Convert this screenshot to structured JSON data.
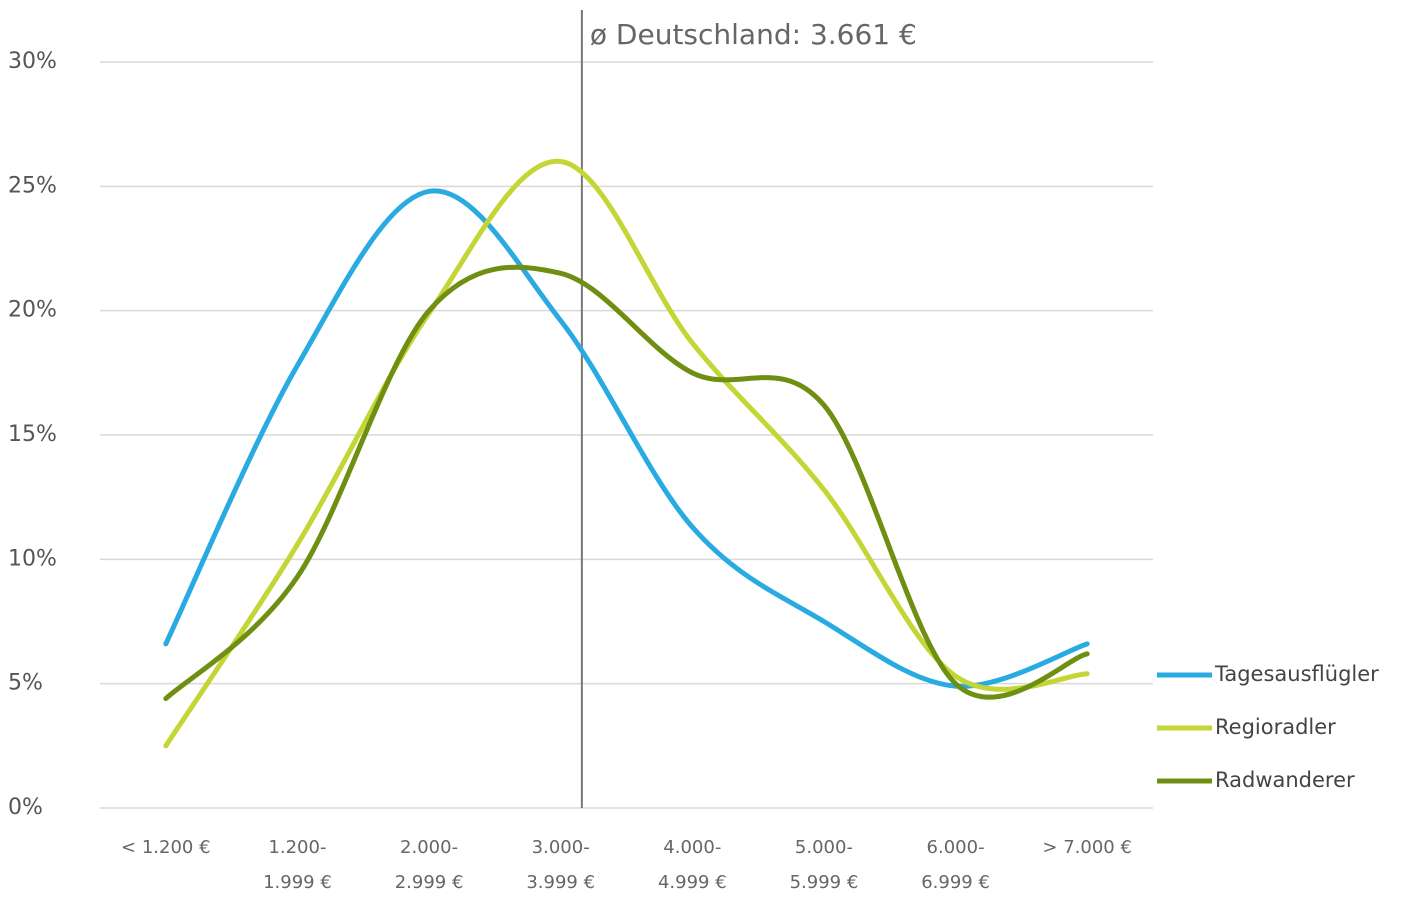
{
  "chart_data": {
    "type": "line",
    "categories": [
      "< 1.200 €",
      "1.200-\n1.999 €",
      "2.000-\n2.999 €",
      "3.000-\n3.999 €",
      "4.000-\n4.999 €",
      "5.000-\n5.999 €",
      "6.000-\n6.999 €",
      "> 7.000 €"
    ],
    "series": [
      {
        "name": "Tagesausflügler",
        "color": "#29abe2",
        "values": [
          6.6,
          17.8,
          24.8,
          19.6,
          11.3,
          7.5,
          4.9,
          6.6
        ]
      },
      {
        "name": "Regioradler",
        "color": "#c3d636",
        "values": [
          2.5,
          10.6,
          19.9,
          26.0,
          18.7,
          12.8,
          5.3,
          5.4
        ]
      },
      {
        "name": "Radwanderer",
        "color": "#6e8f12",
        "values": [
          4.4,
          9.3,
          20.0,
          21.5,
          17.5,
          16.2,
          5.0,
          6.2
        ]
      }
    ],
    "ylim": [
      0,
      30
    ],
    "yticks": [
      {
        "value": 0,
        "label": "0%"
      },
      {
        "value": 5,
        "label": "5%"
      },
      {
        "value": 10,
        "label": "10%"
      },
      {
        "value": 15,
        "label": "15%"
      },
      {
        "value": 20,
        "label": "20%"
      },
      {
        "value": 25,
        "label": "25%"
      },
      {
        "value": 30,
        "label": "30%"
      }
    ],
    "grid": true,
    "smooth": true,
    "legend": "right",
    "reference_line": {
      "value": 3661,
      "label": "ø Deutschland: 3.661 €"
    }
  }
}
